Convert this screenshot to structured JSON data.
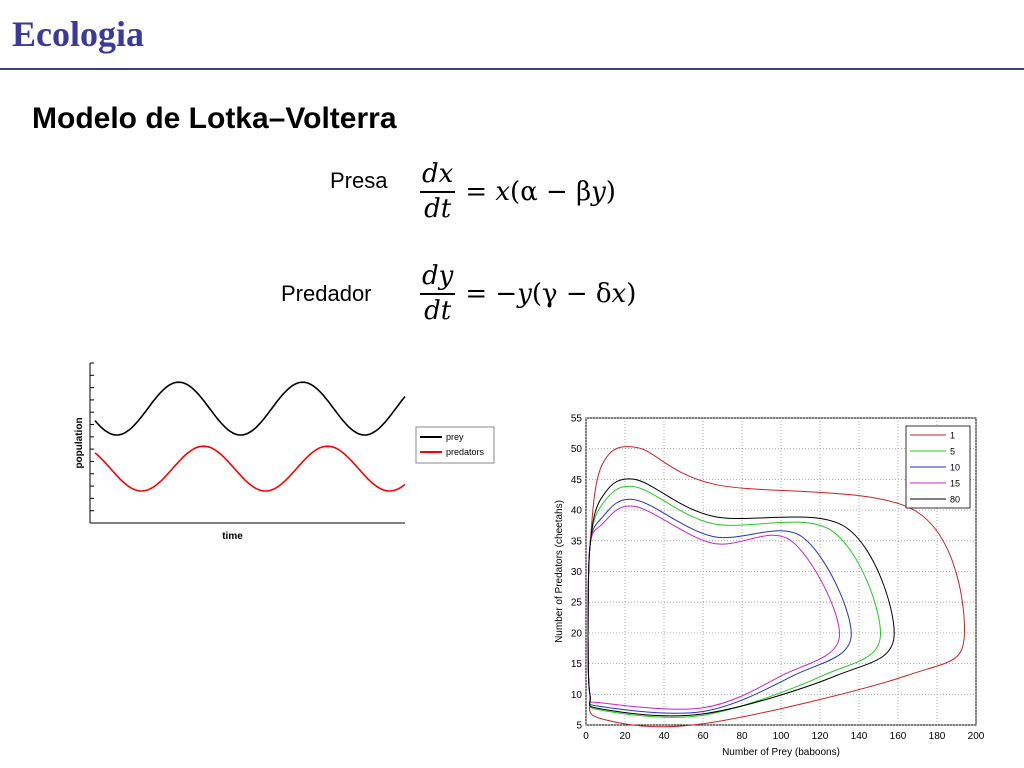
{
  "slide": {
    "title": "Ecologia",
    "subtitle": "Modelo de Lotka–Volterra"
  },
  "equations": {
    "prey": {
      "label": "Presa",
      "num": "dx",
      "den": "dt",
      "rhs_var": "x",
      "rhs_rest": "(α − β",
      "rhs_var2": "y",
      "rhs_end": ")"
    },
    "predator": {
      "label": "Predador",
      "num": "dy",
      "den": "dt",
      "rhs_var": "−y",
      "rhs_rest": "(γ − δ",
      "rhs_var2": "x",
      "rhs_end": ")"
    }
  },
  "colors": {
    "title": "#3a3a98"
  },
  "chart_data": [
    {
      "type": "line",
      "title": "",
      "xlabel": "time",
      "ylabel": "population",
      "x_ticks": false,
      "y_ticks": 14,
      "legend": {
        "placement": "right",
        "entries": [
          "prey",
          "predators"
        ]
      },
      "series": [
        {
          "name": "prey",
          "color": "#000000",
          "shape": "periodic",
          "peaks_at_time_fraction": [
            0.27,
            0.67
          ],
          "relative_min": 0.55,
          "relative_max": 0.88
        },
        {
          "name": "predators",
          "color": "#ff0000",
          "shape": "periodic",
          "peaks_at_time_fraction": [
            0.35,
            0.75
          ],
          "relative_min": 0.2,
          "relative_max": 0.48
        }
      ]
    },
    {
      "type": "line",
      "xlabel": "Number of Prey (baboons)",
      "ylabel": "Number of Predators (cheetahs)",
      "xlim": [
        0,
        200
      ],
      "ylim": [
        5,
        55
      ],
      "x_ticks": [
        0,
        20,
        40,
        60,
        80,
        100,
        120,
        140,
        160,
        180,
        200
      ],
      "y_ticks": [
        5,
        10,
        15,
        20,
        25,
        30,
        35,
        40,
        45,
        50,
        55
      ],
      "grid": true,
      "legend": {
        "placement": "top-right"
      },
      "series": [
        {
          "name": "1",
          "color": "#cc2222",
          "prey_max": 194,
          "pred_max": 50.2,
          "pred_min": 5.2,
          "peak_prey": 26,
          "prey_at_pred_min": 60
        },
        {
          "name": "5",
          "color": "#22cc22",
          "prey_max": 151,
          "pred_max": 43.8,
          "pred_min": 6.6,
          "peak_prey": 25,
          "prey_at_pred_min": 60
        },
        {
          "name": "10",
          "color": "#2233bb",
          "prey_max": 136,
          "pred_max": 41.7,
          "pred_min": 7.2,
          "peak_prey": 25,
          "prey_at_pred_min": 60
        },
        {
          "name": "15",
          "color": "#cc22cc",
          "prey_max": 130,
          "pred_max": 40.6,
          "pred_min": 7.8,
          "peak_prey": 25,
          "prey_at_pred_min": 60
        },
        {
          "name": "80",
          "color": "#000000",
          "prey_max": 158,
          "pred_max": 45.0,
          "pred_min": 6.8,
          "peak_prey": 25,
          "prey_at_pred_min": 60
        }
      ]
    }
  ]
}
